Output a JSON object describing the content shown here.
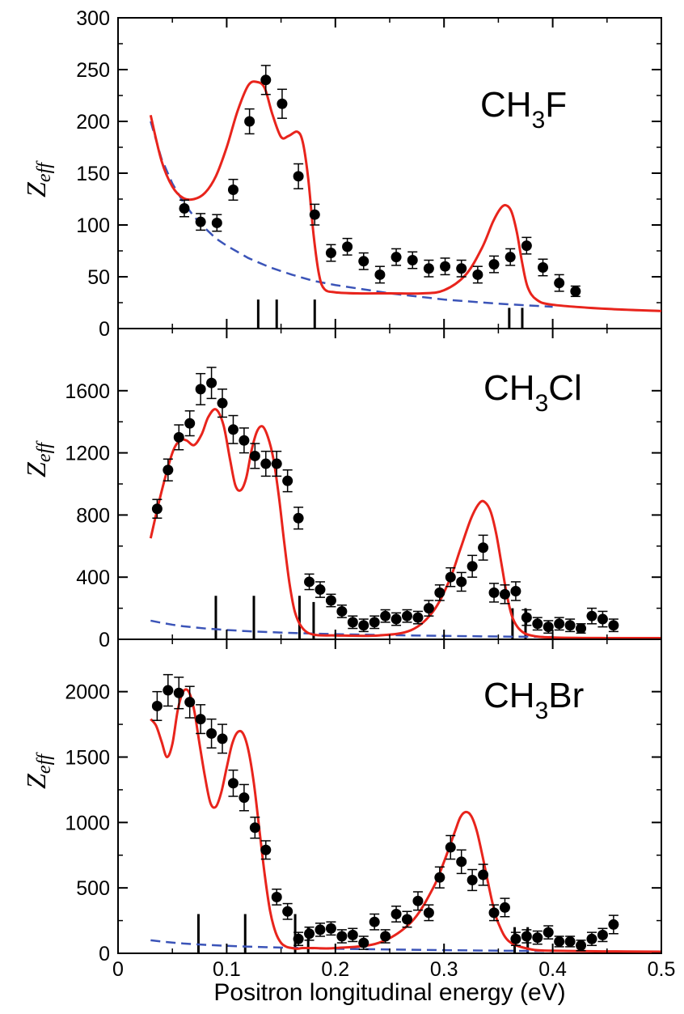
{
  "figure": {
    "xlabel": "Positron longitudinal energy (eV)",
    "x_tick_labels": [
      "0",
      "0.1",
      "0.2",
      "0.3",
      "0.4",
      "0.5"
    ]
  },
  "colors": {
    "theory_line": "#e8241c",
    "background_line": "#3b54b8",
    "data_points": "#000000",
    "axis": "#000000"
  },
  "chart_data": [
    {
      "type": "scatter",
      "molecule": {
        "base": "CH",
        "sub": "3",
        "tail": "F"
      },
      "ylabel": {
        "main": "Z",
        "sub": "eff"
      },
      "xlim": [
        0,
        0.5
      ],
      "ylim": [
        0,
        300
      ],
      "x_ticks": [
        0,
        0.1,
        0.2,
        0.3,
        0.4,
        0.5
      ],
      "y_ticks": [
        0,
        50,
        100,
        150,
        200,
        250,
        300
      ],
      "y_tick_labels": [
        "0",
        "50",
        "100",
        "150",
        "200",
        "250",
        "300"
      ],
      "measured": {
        "x": [
          0.061,
          0.076,
          0.091,
          0.106,
          0.121,
          0.136,
          0.151,
          0.166,
          0.181,
          0.196,
          0.211,
          0.226,
          0.241,
          0.256,
          0.271,
          0.286,
          0.301,
          0.316,
          0.331,
          0.346,
          0.361,
          0.376,
          0.391,
          0.406,
          0.421
        ],
        "y": [
          116,
          103,
          102,
          134,
          200,
          240,
          217,
          147,
          110,
          73,
          79,
          65,
          52,
          69,
          66,
          58,
          60,
          58,
          52,
          62,
          69,
          80,
          59,
          44,
          36
        ],
        "err": [
          8,
          8,
          8,
          10,
          12,
          14,
          14,
          12,
          10,
          8,
          8,
          8,
          8,
          8,
          8,
          8,
          8,
          8,
          8,
          8,
          8,
          8,
          8,
          8,
          5
        ]
      },
      "theory": {
        "x": [
          0.03,
          0.04,
          0.05,
          0.06,
          0.07,
          0.08,
          0.09,
          0.1,
          0.11,
          0.12,
          0.128,
          0.135,
          0.142,
          0.15,
          0.157,
          0.165,
          0.17,
          0.175,
          0.18,
          0.185,
          0.19,
          0.2,
          0.22,
          0.25,
          0.28,
          0.3,
          0.32,
          0.335,
          0.345,
          0.352,
          0.357,
          0.362,
          0.367,
          0.372,
          0.377,
          0.385,
          0.4,
          0.45,
          0.5
        ],
        "y": [
          206,
          162,
          137,
          126,
          125,
          131,
          147,
          175,
          210,
          235,
          238,
          232,
          207,
          185,
          186,
          190,
          180,
          145,
          90,
          52,
          38,
          35,
          34,
          34,
          34,
          37,
          52,
          78,
          103,
          116,
          119,
          113,
          93,
          63,
          40,
          28,
          23,
          19,
          17
        ]
      },
      "background": {
        "x": [
          0.03,
          0.04,
          0.05,
          0.06,
          0.07,
          0.08,
          0.09,
          0.1,
          0.12,
          0.14,
          0.16,
          0.18,
          0.2,
          0.25,
          0.3,
          0.35,
          0.4
        ],
        "y": [
          200,
          164,
          140,
          122,
          108,
          97,
          87,
          80,
          68,
          59,
          52,
          46,
          42,
          34,
          28,
          24,
          21
        ]
      },
      "sticks": {
        "x": [
          0.129,
          0.146,
          0.181,
          0.36,
          0.372
        ],
        "height": [
          28,
          28,
          28,
          20,
          20
        ]
      }
    },
    {
      "type": "scatter",
      "molecule": {
        "base": "CH",
        "sub": "3",
        "tail": "Cl"
      },
      "ylabel": {
        "main": "Z",
        "sub": "eff"
      },
      "xlim": [
        0,
        0.5
      ],
      "ylim": [
        0,
        2000
      ],
      "x_ticks": [
        0,
        0.1,
        0.2,
        0.3,
        0.4,
        0.5
      ],
      "y_ticks": [
        0,
        400,
        800,
        1200,
        1600
      ],
      "y_tick_labels": [
        "0",
        "400",
        "800",
        "1200",
        "1600"
      ],
      "measured": {
        "x": [
          0.036,
          0.046,
          0.056,
          0.066,
          0.076,
          0.086,
          0.096,
          0.106,
          0.116,
          0.126,
          0.136,
          0.146,
          0.156,
          0.166,
          0.176,
          0.186,
          0.196,
          0.206,
          0.216,
          0.226,
          0.236,
          0.246,
          0.256,
          0.266,
          0.276,
          0.286,
          0.296,
          0.306,
          0.316,
          0.326,
          0.336,
          0.346,
          0.356,
          0.366,
          0.376,
          0.386,
          0.396,
          0.406,
          0.416,
          0.426,
          0.436,
          0.446,
          0.456
        ],
        "y": [
          840,
          1090,
          1300,
          1390,
          1610,
          1650,
          1520,
          1350,
          1280,
          1180,
          1130,
          1130,
          1020,
          780,
          370,
          320,
          250,
          180,
          110,
          90,
          110,
          150,
          130,
          150,
          140,
          200,
          300,
          400,
          370,
          470,
          590,
          300,
          290,
          310,
          140,
          100,
          80,
          100,
          90,
          70,
          150,
          130,
          90
        ],
        "err": [
          60,
          70,
          80,
          80,
          100,
          100,
          90,
          90,
          80,
          80,
          80,
          80,
          70,
          70,
          50,
          50,
          40,
          40,
          40,
          40,
          40,
          40,
          40,
          40,
          40,
          50,
          50,
          60,
          60,
          70,
          80,
          60,
          60,
          60,
          50,
          40,
          40,
          40,
          40,
          30,
          50,
          50,
          40
        ]
      },
      "theory": {
        "x": [
          0.03,
          0.04,
          0.05,
          0.057,
          0.063,
          0.07,
          0.077,
          0.083,
          0.09,
          0.097,
          0.103,
          0.108,
          0.113,
          0.118,
          0.123,
          0.128,
          0.133,
          0.138,
          0.143,
          0.148,
          0.153,
          0.158,
          0.163,
          0.17,
          0.18,
          0.2,
          0.24,
          0.27,
          0.29,
          0.305,
          0.315,
          0.325,
          0.333,
          0.338,
          0.343,
          0.348,
          0.353,
          0.358,
          0.363,
          0.37,
          0.38,
          0.4,
          0.45,
          0.5
        ],
        "y": [
          650,
          950,
          1200,
          1280,
          1280,
          1250,
          1320,
          1430,
          1480,
          1380,
          1160,
          990,
          960,
          1040,
          1220,
          1340,
          1370,
          1300,
          1160,
          920,
          620,
          350,
          170,
          70,
          30,
          25,
          25,
          60,
          180,
          380,
          580,
          780,
          880,
          880,
          820,
          680,
          480,
          280,
          140,
          60,
          25,
          12,
          8,
          8
        ]
      },
      "background": {
        "x": [
          0.03,
          0.04,
          0.05,
          0.06,
          0.08,
          0.1,
          0.12,
          0.14,
          0.16,
          0.18,
          0.2,
          0.25,
          0.3,
          0.35,
          0.4
        ],
        "y": [
          120,
          106,
          94,
          84,
          70,
          60,
          52,
          46,
          41,
          37,
          33,
          27,
          22,
          18,
          15
        ]
      },
      "sticks": {
        "x": [
          0.09,
          0.125,
          0.167,
          0.18,
          0.363,
          0.375
        ],
        "height": [
          280,
          280,
          280,
          240,
          200,
          200
        ]
      }
    },
    {
      "type": "scatter",
      "molecule": {
        "base": "CH",
        "sub": "3",
        "tail": "Br"
      },
      "ylabel": {
        "main": "Z",
        "sub": "eff"
      },
      "xlim": [
        0,
        0.5
      ],
      "ylim": [
        0,
        2400
      ],
      "x_ticks": [
        0,
        0.1,
        0.2,
        0.3,
        0.4,
        0.5
      ],
      "y_ticks": [
        0,
        500,
        1000,
        1500,
        2000
      ],
      "y_tick_labels": [
        "0",
        "500",
        "1000",
        "1500",
        "2000"
      ],
      "measured": {
        "x": [
          0.036,
          0.046,
          0.056,
          0.066,
          0.076,
          0.086,
          0.096,
          0.106,
          0.116,
          0.126,
          0.136,
          0.146,
          0.156,
          0.166,
          0.176,
          0.186,
          0.196,
          0.206,
          0.216,
          0.226,
          0.236,
          0.246,
          0.256,
          0.266,
          0.276,
          0.286,
          0.296,
          0.306,
          0.316,
          0.326,
          0.336,
          0.346,
          0.356,
          0.366,
          0.376,
          0.386,
          0.396,
          0.406,
          0.416,
          0.426,
          0.436,
          0.446,
          0.456
        ],
        "y": [
          1890,
          2010,
          1990,
          1920,
          1790,
          1680,
          1640,
          1300,
          1190,
          960,
          790,
          430,
          320,
          110,
          150,
          180,
          190,
          130,
          140,
          80,
          240,
          130,
          300,
          260,
          400,
          310,
          580,
          810,
          700,
          560,
          600,
          310,
          350,
          110,
          130,
          120,
          160,
          90,
          90,
          60,
          110,
          140,
          220
        ],
        "err": [
          110,
          120,
          120,
          120,
          110,
          110,
          110,
          100,
          100,
          80,
          70,
          60,
          60,
          50,
          50,
          50,
          50,
          50,
          50,
          50,
          60,
          50,
          60,
          60,
          70,
          60,
          80,
          90,
          90,
          80,
          80,
          60,
          70,
          50,
          50,
          50,
          50,
          40,
          40,
          40,
          50,
          50,
          70
        ]
      },
      "theory": {
        "x": [
          0.03,
          0.035,
          0.04,
          0.045,
          0.05,
          0.055,
          0.06,
          0.065,
          0.07,
          0.075,
          0.08,
          0.085,
          0.09,
          0.095,
          0.1,
          0.105,
          0.11,
          0.115,
          0.12,
          0.125,
          0.13,
          0.135,
          0.14,
          0.145,
          0.15,
          0.155,
          0.16,
          0.165,
          0.17,
          0.18,
          0.2,
          0.24,
          0.27,
          0.29,
          0.3,
          0.31,
          0.315,
          0.32,
          0.325,
          0.33,
          0.335,
          0.34,
          0.345,
          0.35,
          0.36,
          0.38,
          0.4,
          0.45,
          0.5
        ],
        "y": [
          1790,
          1740,
          1620,
          1500,
          1600,
          1860,
          2000,
          2000,
          1860,
          1600,
          1350,
          1150,
          1120,
          1230,
          1420,
          1600,
          1690,
          1680,
          1550,
          1300,
          950,
          600,
          320,
          160,
          80,
          50,
          40,
          35,
          40,
          40,
          40,
          80,
          240,
          500,
          700,
          930,
          1040,
          1080,
          1050,
          940,
          760,
          560,
          370,
          230,
          90,
          30,
          20,
          15,
          12
        ]
      },
      "background": {
        "x": [
          0.03,
          0.04,
          0.05,
          0.06,
          0.08,
          0.1,
          0.12,
          0.14,
          0.16,
          0.18,
          0.2,
          0.25,
          0.3,
          0.35,
          0.4
        ],
        "y": [
          100,
          90,
          82,
          75,
          65,
          57,
          51,
          46,
          42,
          38,
          35,
          29,
          24,
          20,
          17
        ]
      },
      "sticks": {
        "x": [
          0.074,
          0.117,
          0.163,
          0.175,
          0.365,
          0.377
        ],
        "height": [
          300,
          300,
          300,
          200,
          200,
          200
        ]
      }
    }
  ]
}
